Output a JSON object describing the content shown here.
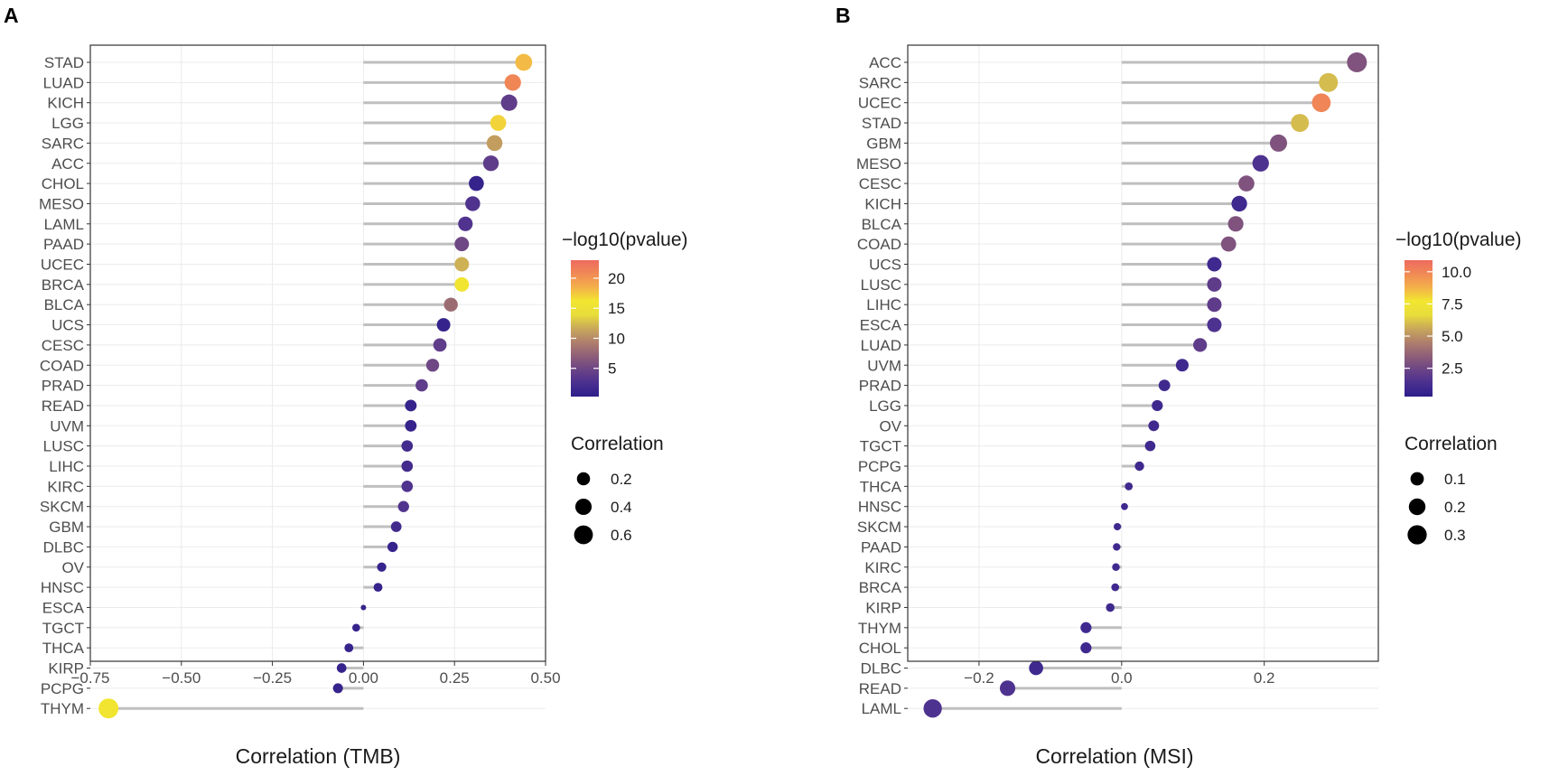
{
  "chart_data": [
    {
      "panel": "A",
      "type": "lollipop",
      "xlabel": "Correlation (TMB)",
      "xlim": [
        -0.75,
        0.5
      ],
      "xticks": [
        -0.75,
        -0.5,
        -0.25,
        0.0,
        0.25,
        0.5
      ],
      "xtick_labels": [
        "−0.75",
        "−0.50",
        "−0.25",
        "0.00",
        "0.25",
        "0.50"
      ],
      "categories": [
        "STAD",
        "LUAD",
        "KICH",
        "LGG",
        "SARC",
        "ACC",
        "CHOL",
        "MESO",
        "LAML",
        "PAAD",
        "UCEC",
        "BRCA",
        "BLCA",
        "UCS",
        "CESC",
        "COAD",
        "PRAD",
        "READ",
        "UVM",
        "LUSC",
        "LIHC",
        "KIRC",
        "SKCM",
        "GBM",
        "DLBC",
        "OV",
        "HNSC",
        "ESCA",
        "TGCT",
        "THCA",
        "KIRP",
        "PCPG",
        "THYM"
      ],
      "correlation": [
        0.44,
        0.41,
        0.4,
        0.37,
        0.36,
        0.35,
        0.31,
        0.3,
        0.28,
        0.27,
        0.27,
        0.27,
        0.24,
        0.22,
        0.21,
        0.19,
        0.16,
        0.13,
        0.13,
        0.12,
        0.12,
        0.12,
        0.11,
        0.09,
        0.08,
        0.05,
        0.04,
        0.0,
        -0.02,
        -0.04,
        -0.06,
        -0.07,
        -0.7
      ],
      "neg_log10_pvalue": [
        18,
        21,
        4,
        17,
        11,
        4,
        1,
        3,
        3,
        5,
        12,
        16,
        8,
        1,
        4,
        5,
        4,
        1,
        1,
        2,
        2,
        3,
        3,
        2,
        1,
        1,
        1,
        1,
        1,
        1,
        1,
        1,
        16
      ],
      "color_legend": {
        "title": "−log10(pvalue)",
        "ticks": [
          5,
          10,
          15,
          20
        ],
        "tick_labels": [
          "5",
          "10",
          "15",
          "20"
        ],
        "range": [
          0.3,
          23
        ]
      },
      "size_legend": {
        "title": "Correlation",
        "values": [
          0.2,
          0.4,
          0.6
        ],
        "labels": [
          "0.2",
          "0.4",
          "0.6"
        ]
      }
    },
    {
      "panel": "B",
      "type": "lollipop",
      "xlabel": "Correlation (MSI)",
      "xlim": [
        -0.3,
        0.36
      ],
      "xticks": [
        -0.2,
        0.0,
        0.2
      ],
      "xtick_labels": [
        "−0.2",
        "0.0",
        "0.2"
      ],
      "categories": [
        "ACC",
        "SARC",
        "UCEC",
        "STAD",
        "GBM",
        "MESO",
        "CESC",
        "KICH",
        "BLCA",
        "COAD",
        "UCS",
        "LUSC",
        "LIHC",
        "ESCA",
        "LUAD",
        "UVM",
        "PRAD",
        "LGG",
        "OV",
        "TGCT",
        "PCPG",
        "THCA",
        "HNSC",
        "SKCM",
        "PAAD",
        "KIRC",
        "BRCA",
        "KIRP",
        "THYM",
        "CHOL",
        "DLBC",
        "READ",
        "LAML"
      ],
      "correlation": [
        0.33,
        0.29,
        0.28,
        0.25,
        0.22,
        0.195,
        0.175,
        0.165,
        0.16,
        0.15,
        0.13,
        0.13,
        0.13,
        0.13,
        0.11,
        0.085,
        0.06,
        0.05,
        0.045,
        0.04,
        0.025,
        0.01,
        0.004,
        -0.006,
        -0.007,
        -0.008,
        -0.009,
        -0.016,
        -0.05,
        -0.05,
        -0.12,
        -0.16,
        -0.265
      ],
      "neg_log10_pvalue": [
        3,
        6,
        10,
        6,
        3,
        1.5,
        3,
        1,
        3,
        3,
        1,
        2,
        2,
        1.5,
        2,
        1,
        1,
        1,
        1,
        1,
        1,
        1,
        1,
        1,
        1,
        1,
        1,
        1,
        1,
        1,
        1,
        1.5,
        1.5
      ],
      "color_legend": {
        "title": "−log10(pvalue)",
        "ticks": [
          2.5,
          5.0,
          7.5,
          10.0
        ],
        "tick_labels": [
          "2.5",
          "5.0",
          "7.5",
          "10.0"
        ],
        "range": [
          0.3,
          10.9
        ]
      },
      "size_legend": {
        "title": "Correlation",
        "values": [
          0.1,
          0.2,
          0.3
        ],
        "labels": [
          "0.1",
          "0.2",
          "0.3"
        ]
      }
    }
  ],
  "colors": {
    "palette": [
      "#2d1e8a",
      "#4a2f90",
      "#6c4586",
      "#8f5f78",
      "#b0806c",
      "#c9a85a",
      "#e8dd3a",
      "#f2e630",
      "#f3b04a",
      "#f08a55",
      "#ee6a5f"
    ],
    "stick": "#bfbfbf",
    "panel_border": "#333333",
    "grid": "#ebebeb"
  }
}
